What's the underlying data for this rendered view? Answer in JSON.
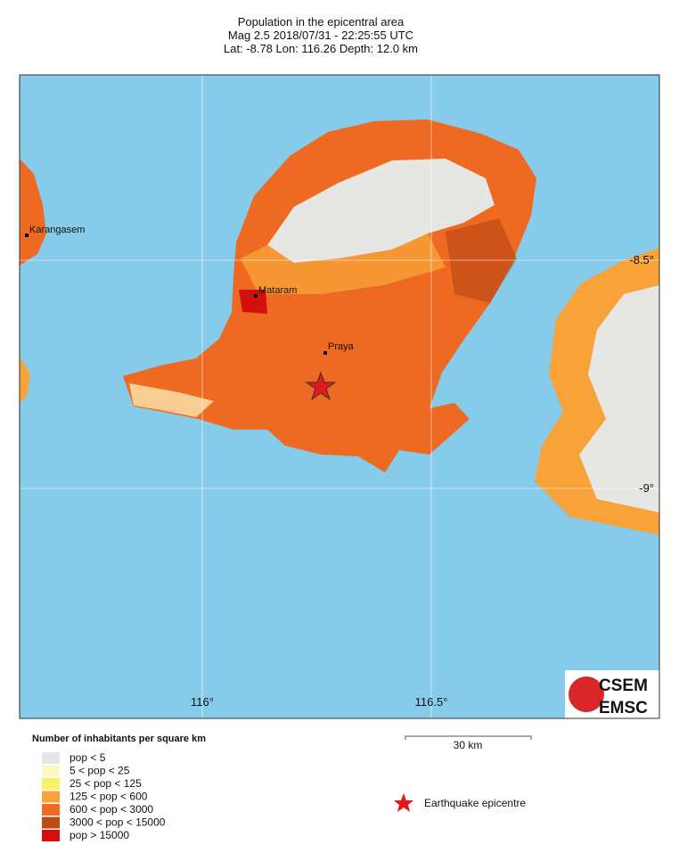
{
  "header": {
    "title": "Population in the epicentral area",
    "event": "Mag 2.5  2018/07/31 - 22:25:55 UTC",
    "location": "Lat: -8.78    Lon: 116.26     Depth:  12.0 km"
  },
  "map": {
    "longitude_labels": [
      "116°",
      "116.5°"
    ],
    "latitude_labels": [
      "-8.5°",
      "-9°"
    ],
    "cities": [
      "Karangasem",
      "Mataram",
      "Praya"
    ]
  },
  "legend": {
    "title": "Number of inhabitants per square km",
    "items": [
      {
        "label": "pop < 5",
        "color": "#e6e6e3"
      },
      {
        "label": "5 < pop < 25",
        "color": "#fdf9c4"
      },
      {
        "label": "25 < pop < 125",
        "color": "#fbf166"
      },
      {
        "label": "125 < pop < 600",
        "color": "#f8a23a"
      },
      {
        "label": "600 < pop < 3000",
        "color": "#ee6a22"
      },
      {
        "label": "3000 < pop < 15000",
        "color": "#bd4c14"
      },
      {
        "label": "pop > 15000",
        "color": "#d30f10"
      }
    ]
  },
  "scale_bar": {
    "label": "30 km"
  },
  "epicentre": {
    "label": "Earthquake epicentre"
  },
  "logo": {
    "top": "CSEM",
    "bottom": "EMSC"
  }
}
